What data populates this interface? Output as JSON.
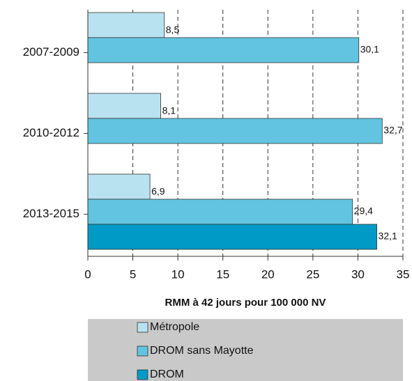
{
  "chart_data": {
    "type": "barh",
    "categories": [
      "2007-2009",
      "2010-2012",
      "2013-2015"
    ],
    "series": [
      {
        "name": "Métropole",
        "color": "#b9e2f0",
        "values": [
          8.5,
          8.1,
          6.9
        ],
        "value_labels": [
          "8,5",
          "8,1",
          "6,9"
        ]
      },
      {
        "name": "DROM sans Mayotte",
        "color": "#62c4e0",
        "values": [
          30.1,
          32.7,
          29.4
        ],
        "value_labels": [
          "30,1",
          "32,7",
          "29,4"
        ]
      },
      {
        "name": "DROM",
        "color": "#009ac6",
        "values": [
          null,
          null,
          32.1
        ],
        "value_labels": [
          null,
          null,
          "32,1"
        ]
      }
    ],
    "xlabel": "RMM à 42 jours pour 100 000 NV",
    "xlim": [
      0,
      35
    ],
    "xticks": [
      0,
      5,
      10,
      15,
      20,
      25,
      30,
      35
    ],
    "grid": true,
    "legend": "bottom"
  }
}
